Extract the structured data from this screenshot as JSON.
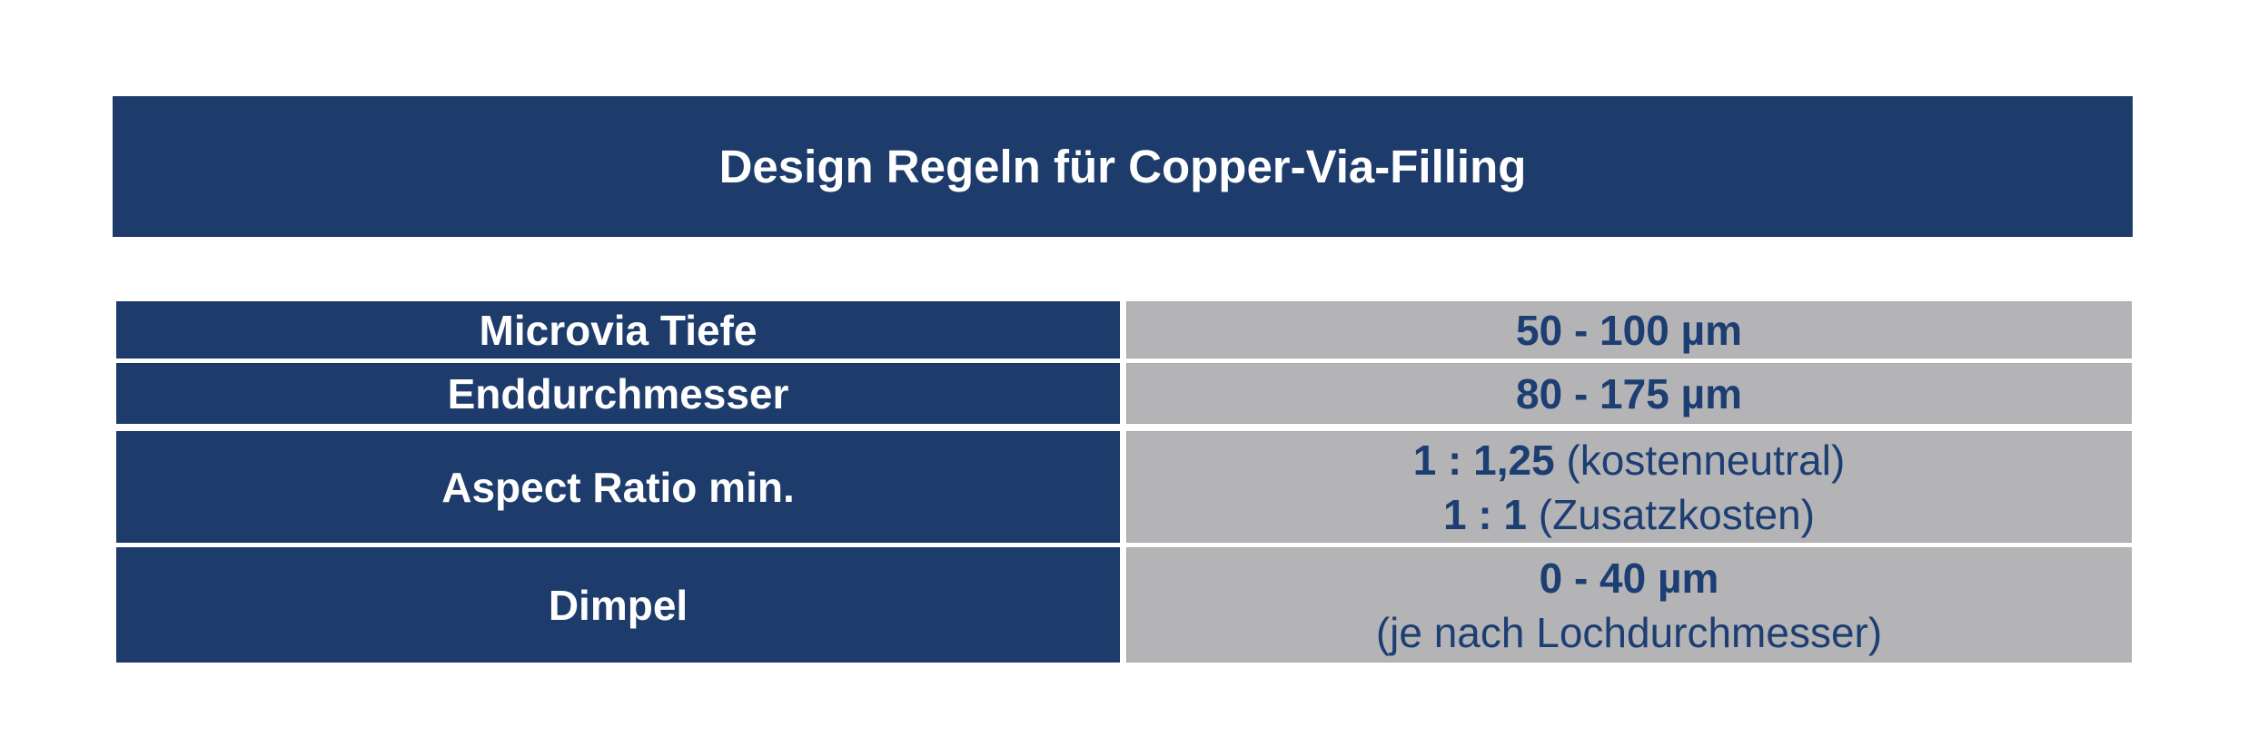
{
  "theme": {
    "page_background": "#ffffff",
    "navy": "#1d3c6c",
    "gray": "#b4b4b6",
    "value_text_color": "#1d3e72",
    "label_text_color": "#ffffff"
  },
  "header": {
    "title": "Design Regeln für Copper-Via-Filling"
  },
  "table": {
    "rows": [
      {
        "label": "Microvia Tiefe",
        "value": {
          "lines": [
            {
              "bold": "50 - 100 µm",
              "normal": ""
            }
          ]
        }
      },
      {
        "label": "Enddurchmesser",
        "value": {
          "lines": [
            {
              "bold": "80 - 175 µm",
              "normal": ""
            }
          ]
        }
      },
      {
        "label": "Aspect Ratio min.",
        "value": {
          "lines": [
            {
              "bold": "1 : 1,25",
              "normal": " (kostenneutral)"
            },
            {
              "bold": "1 : 1",
              "normal": " (Zusatzkosten)"
            }
          ]
        }
      },
      {
        "label": "Dimpel",
        "value": {
          "lines": [
            {
              "bold": "0 - 40 µm",
              "normal": ""
            },
            {
              "bold": "",
              "normal": "(je nach Lochdurchmesser)"
            }
          ]
        }
      }
    ]
  }
}
